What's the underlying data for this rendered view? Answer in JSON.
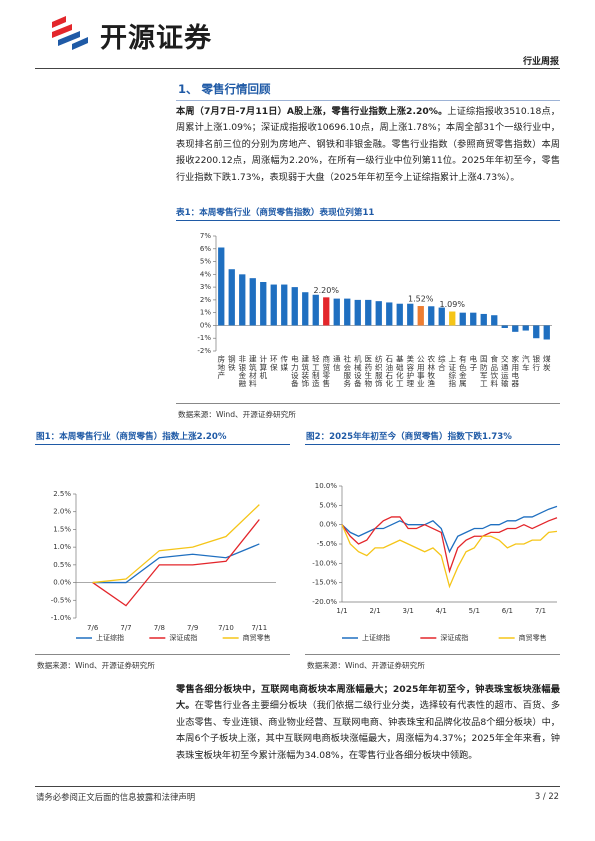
{
  "header": {
    "logo": "开源证券",
    "report_type": "行业周报"
  },
  "section": {
    "title": "1、 零售行情回顾"
  },
  "paragraphs": [
    {
      "lead": "本周（7月7日-7月11日）A股上涨，零售行业指数上涨2.20%。",
      "body": "上证综指报收3510.18点，周累计上涨1.09%；深证成指报收10696.10点，周上涨1.78%；本周全部31个一级行业中，表现排名前三位的分别为房地产、钢铁和非银金融。零售行业指数（参照商贸零售指数）本周报收2200.12点，周涨幅为2.20%，在所有一级行业中位列第11位。2025年年初至今，零售行业指数下跌1.73%，表现弱于大盘（2025年年初至今上证综指累计上涨4.73%）。"
    },
    {
      "lead": "零售各细分板块中，互联网电商板块本周涨幅最大；2025年年初至今，钟表珠宝板块涨幅最大。",
      "body": "在零售行业各主要细分板块（我们依据二级行业分类，选择较有代表性的超市、百货、多业态零售、专业连锁、商业物业经营、互联网电商、钟表珠宝和品牌化妆品8个细分板块）中，本周6个子板块上涨，其中互联网电商板块涨幅最大，周涨幅为4.37%；2025年全年来看，钟表珠宝板块年初至今累计涨幅为34.08%，在零售行业各细分板块中领跑。"
    }
  ],
  "chart_data": [
    {
      "type": "bar",
      "title": "表1：本周零售行业（商贸零售指数）表现位列第11",
      "source": "数据来源：Wind、开源证券研究所",
      "categories": [
        "房地产",
        "钢铁",
        "非银金融",
        "建筑材料",
        "计算机",
        "环保",
        "传媒",
        "电力设备",
        "建筑装饰",
        "轻工制造",
        "商贸零售",
        "通信",
        "社会服务",
        "机械设备",
        "医药生物",
        "纺织服饰",
        "石油石化",
        "基础化工",
        "美容护理",
        "公用事业",
        "农林牧渔",
        "综合",
        "上证综指",
        "有色金属",
        "电子",
        "国防军工",
        "食品饮料",
        "交通运输",
        "家用电器",
        "汽车",
        "银行",
        "煤炭"
      ],
      "values": [
        6.1,
        4.4,
        4.0,
        3.7,
        3.4,
        3.2,
        3.2,
        3.0,
        2.6,
        2.4,
        2.2,
        2.1,
        2.1,
        2.0,
        2.0,
        1.9,
        1.8,
        1.7,
        1.7,
        1.52,
        1.5,
        1.4,
        1.09,
        1.0,
        1.0,
        0.9,
        0.8,
        -0.2,
        -0.5,
        -0.4,
        -1.0,
        -1.1
      ],
      "value_labels": [
        null,
        null,
        null,
        null,
        null,
        null,
        null,
        null,
        null,
        null,
        "2.20%",
        null,
        null,
        null,
        null,
        null,
        null,
        null,
        null,
        "1.52%",
        null,
        null,
        "1.09%",
        null,
        null,
        null,
        null,
        null,
        null,
        null,
        null,
        null
      ],
      "colors": [
        "#1f6fc0",
        "#1f6fc0",
        "#1f6fc0",
        "#1f6fc0",
        "#1f6fc0",
        "#1f6fc0",
        "#1f6fc0",
        "#1f6fc0",
        "#1f6fc0",
        "#1f6fc0",
        "#e3262b",
        "#1f6fc0",
        "#1f6fc0",
        "#1f6fc0",
        "#1f6fc0",
        "#1f6fc0",
        "#1f6fc0",
        "#1f6fc0",
        "#1f6fc0",
        "#ed7d31",
        "#1f6fc0",
        "#1f6fc0",
        "#f5c518",
        "#1f6fc0",
        "#1f6fc0",
        "#1f6fc0",
        "#1f6fc0",
        "#1f6fc0",
        "#1f6fc0",
        "#1f6fc0",
        "#1f6fc0",
        "#1f6fc0"
      ],
      "ylim": [
        -2,
        7
      ],
      "yticks": [
        {
          "value": -2,
          "label": "-2%"
        },
        {
          "value": -1,
          "label": "-1%"
        },
        {
          "value": 0,
          "label": "0%"
        },
        {
          "value": 1,
          "label": "1%"
        },
        {
          "value": 2,
          "label": "2%"
        },
        {
          "value": 3,
          "label": "3%"
        },
        {
          "value": 4,
          "label": "4%"
        },
        {
          "value": 5,
          "label": "5%"
        },
        {
          "value": 6,
          "label": "6%"
        },
        {
          "value": 7,
          "label": "7%"
        }
      ]
    },
    {
      "type": "line",
      "title": "图1：本周零售行业（商贸零售）指数上涨2.20%",
      "source": "数据来源：Wind、开源证券研究所",
      "categories": [
        "7/6",
        "7/7",
        "7/8",
        "7/9",
        "7/10",
        "7/11"
      ],
      "series": [
        {
          "name": "上证综指",
          "color": "#1f6fc0",
          "values": [
            0,
            0.0,
            0.7,
            0.8,
            0.7,
            1.09
          ]
        },
        {
          "name": "深证成指",
          "color": "#e3262b",
          "values": [
            0,
            -0.65,
            0.5,
            0.5,
            0.6,
            1.78
          ]
        },
        {
          "name": "商贸零售",
          "color": "#f5c518",
          "values": [
            0,
            0.1,
            0.9,
            1.0,
            1.3,
            2.2
          ]
        }
      ],
      "ylim": [
        -1.0,
        2.5
      ],
      "yticks": [
        {
          "value": -1.0,
          "label": "-1.0%"
        },
        {
          "value": -0.5,
          "label": "-0.5%"
        },
        {
          "value": 0,
          "label": "0.0%"
        },
        {
          "value": 0.5,
          "label": "0.5%"
        },
        {
          "value": 1.0,
          "label": "1.0%"
        },
        {
          "value": 1.5,
          "label": "1.5%"
        },
        {
          "value": 2.0,
          "label": "2.0%"
        },
        {
          "value": 2.5,
          "label": "2.5%"
        }
      ]
    },
    {
      "type": "line",
      "title": "图2：2025年年初至今（商贸零售）指数下跌1.73%",
      "source": "数据来源：Wind、开源证券研究所",
      "categories": [
        "1/1",
        null,
        null,
        null,
        "2/1",
        null,
        null,
        null,
        "3/1",
        null,
        null,
        null,
        "4/1",
        null,
        null,
        null,
        "5/1",
        null,
        null,
        null,
        "6/1",
        null,
        null,
        null,
        "7/1",
        null,
        null
      ],
      "series": [
        {
          "name": "上证综指",
          "color": "#1f6fc0",
          "values": [
            0,
            -2,
            -3,
            -2,
            -1,
            -1,
            0,
            1,
            0,
            0,
            0,
            1,
            -1,
            -7,
            -3,
            -2,
            -1,
            -1,
            0,
            0,
            1,
            1,
            2,
            2,
            3,
            4,
            4.73
          ]
        },
        {
          "name": "深证成指",
          "color": "#e3262b",
          "values": [
            0,
            -3,
            -5,
            -4,
            -1,
            1,
            2,
            2,
            -1,
            -1,
            0,
            -1,
            -2,
            -12,
            -6,
            -4,
            -3,
            -3,
            -2,
            -2,
            -1,
            -1,
            0,
            -1,
            0,
            1,
            1.8
          ]
        },
        {
          "name": "商贸零售",
          "color": "#f5c518",
          "values": [
            0,
            -5,
            -7,
            -8,
            -6,
            -6,
            -5,
            -4,
            -5,
            -6,
            -7,
            -6,
            -8,
            -16,
            -11,
            -7,
            -6,
            -3,
            -3,
            -4,
            -6,
            -5,
            -5,
            -4,
            -4,
            -2,
            -1.73
          ]
        }
      ],
      "ylim": [
        -20,
        10
      ],
      "yticks": [
        {
          "value": -20,
          "label": "-20.0%"
        },
        {
          "value": -15,
          "label": "-15.0%"
        },
        {
          "value": -10,
          "label": "-10.0%"
        },
        {
          "value": -5,
          "label": "-5.0%"
        },
        {
          "value": 0,
          "label": "0.0%"
        },
        {
          "value": 5,
          "label": "5.0%"
        },
        {
          "value": 10,
          "label": "10.0%"
        }
      ]
    }
  ],
  "footer": {
    "disclaimer": "请务必参阅正文后面的信息披露和法律声明",
    "page": "3 / 22"
  }
}
